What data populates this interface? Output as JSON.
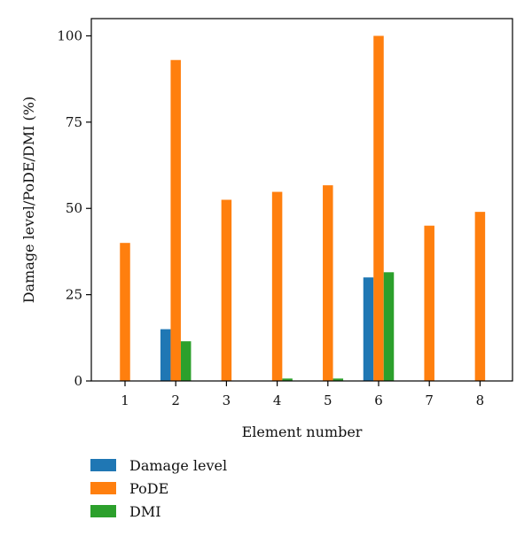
{
  "chart_data": {
    "type": "bar",
    "categories": [
      "1",
      "2",
      "3",
      "4",
      "5",
      "6",
      "7",
      "8"
    ],
    "xlabel": "Element number",
    "ylabel": "Damage level/PoDE/DMI (%)",
    "ylim": [
      0,
      105
    ],
    "yticks": [
      0,
      25,
      50,
      75,
      100
    ],
    "grid": false,
    "legend_position": "bottom-left",
    "series": [
      {
        "name": "Damage level",
        "color": "#1f77b4",
        "values": [
          0,
          15,
          0,
          0,
          0,
          30,
          0,
          0
        ]
      },
      {
        "name": "PoDE",
        "color": "#ff7f0e",
        "values": [
          40,
          93,
          52.5,
          54.8,
          56.7,
          100,
          45,
          49
        ]
      },
      {
        "name": "DMI",
        "color": "#2ca02c",
        "values": [
          0,
          11.5,
          0,
          0.7,
          0.7,
          31.5,
          0,
          0
        ]
      }
    ]
  }
}
